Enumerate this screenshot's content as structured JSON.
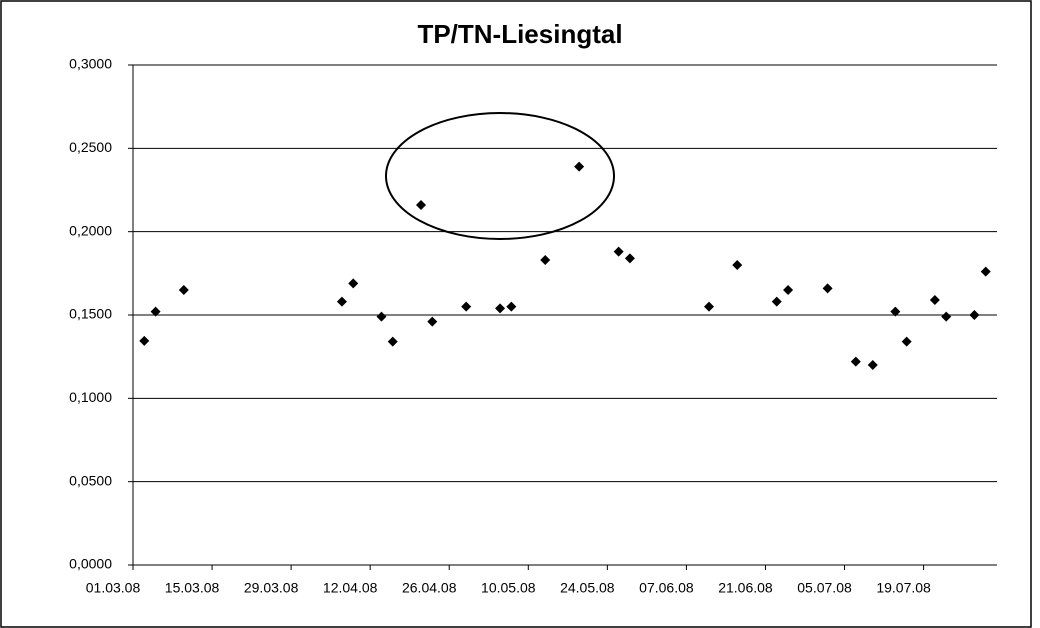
{
  "chart_data": {
    "type": "scatter",
    "title": "TP/TN-Liesingtal",
    "x": [
      "03.03.08",
      "05.03.08",
      "10.03.08",
      "07.04.08",
      "09.04.08",
      "14.04.08",
      "16.04.08",
      "21.04.08",
      "23.04.08",
      "29.04.08",
      "05.05.08",
      "07.05.08",
      "13.05.08",
      "19.05.08",
      "26.05.08",
      "28.05.08",
      "11.06.08",
      "16.06.08",
      "23.06.08",
      "25.06.08",
      "02.07.08",
      "07.07.08",
      "10.07.08",
      "14.07.08",
      "16.07.08",
      "21.07.08",
      "23.07.08",
      "28.07.08",
      "30.07.08"
    ],
    "values": [
      0.1345,
      0.152,
      0.165,
      0.158,
      0.169,
      0.149,
      0.134,
      0.216,
      0.146,
      0.155,
      0.154,
      0.155,
      0.183,
      0.239,
      0.188,
      0.184,
      0.155,
      0.18,
      0.158,
      0.165,
      0.166,
      0.122,
      0.12,
      0.152,
      0.134,
      0.159,
      0.149,
      0.15,
      0.176
    ],
    "color": "#000000",
    "xlim": [
      "01.03.08",
      "01.08.08"
    ],
    "xticks": [
      "01.03.08",
      "15.03.08",
      "29.03.08",
      "12.04.08",
      "26.04.08",
      "10.05.08",
      "24.05.08",
      "07.06.08",
      "21.06.08",
      "05.07.08",
      "19.07.08"
    ],
    "ylim": [
      0,
      0.3
    ],
    "yticks": [
      {
        "value": 0,
        "label": "0,0000"
      },
      {
        "value": 0.05,
        "label": "0,0500"
      },
      {
        "value": 0.1,
        "label": "0,1000"
      },
      {
        "value": 0.15,
        "label": "0,1500"
      },
      {
        "value": 0.2,
        "label": "0,2000"
      },
      {
        "value": 0.25,
        "label": "0,2500"
      },
      {
        "value": 0.3,
        "label": "0,3000"
      }
    ],
    "grid": true
  }
}
